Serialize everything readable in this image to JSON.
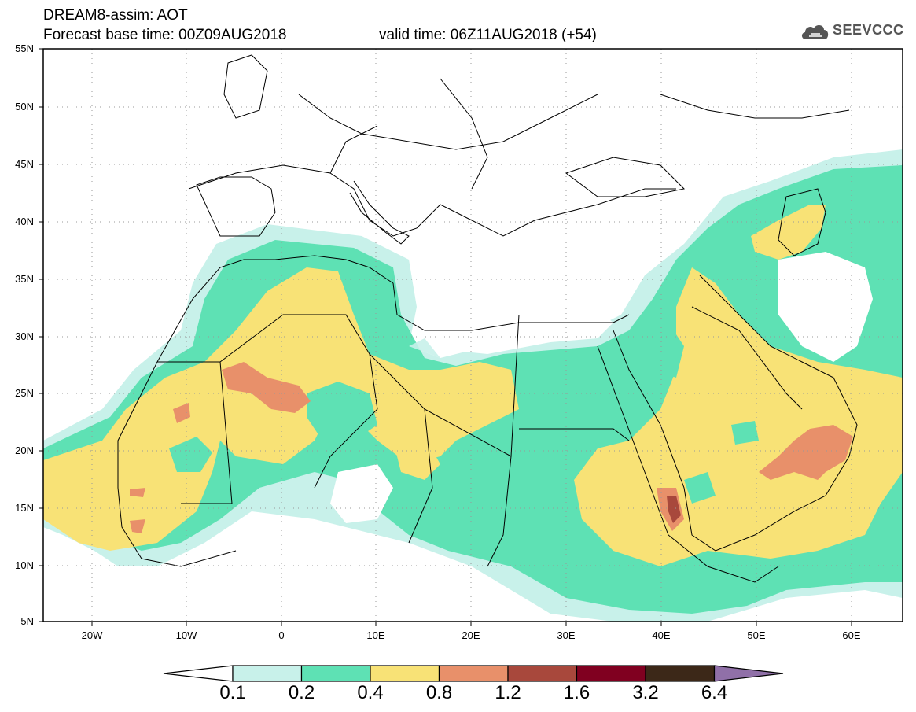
{
  "header": {
    "title": "DREAM8-assim: AOT",
    "base_time": "Forecast base time: 00Z09AUG2018",
    "valid_time": "valid time: 06Z11AUG2018 (+54)"
  },
  "logo": {
    "text": "SEEVCCC",
    "icon": "cloud-icon"
  },
  "map": {
    "region": "North Africa, Mediterranean, Middle East",
    "latitude_labels": [
      "55N",
      "50N",
      "45N",
      "40N",
      "35N",
      "30N",
      "25N",
      "20N",
      "15N",
      "10N",
      "5N"
    ],
    "longitude_labels": [
      "20W",
      "10W",
      "0",
      "10E",
      "20E",
      "30E",
      "40E",
      "50E",
      "60E"
    ]
  },
  "colorbar": {
    "levels": [
      "0.1",
      "0.2",
      "0.4",
      "0.8",
      "1.2",
      "1.6",
      "3.2",
      "6.4"
    ],
    "colors": [
      "#c8f1ea",
      "#5ee1b4",
      "#f8e276",
      "#e8906a",
      "#a8483c",
      "#800020",
      "#3c2818",
      "#9070a8"
    ]
  }
}
